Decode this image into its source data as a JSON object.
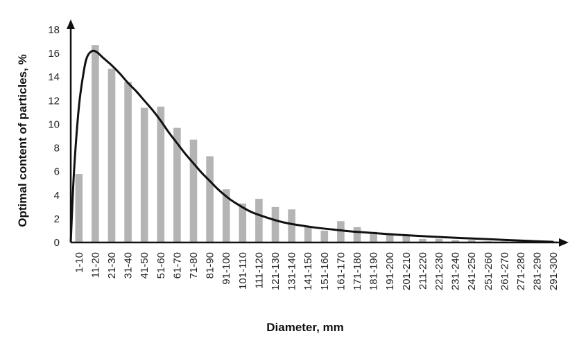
{
  "chart_data": {
    "type": "bar",
    "title": "",
    "xlabel": "Diameter, mm",
    "ylabel": "Optimal content of particles, %",
    "ylim": [
      0,
      18
    ],
    "yticks": [
      0,
      2,
      4,
      6,
      8,
      10,
      12,
      14,
      16,
      18
    ],
    "grid": false,
    "legend": "none",
    "categories": [
      "1-10",
      "11-20",
      "21-30",
      "31-40",
      "41-50",
      "51-60",
      "61-70",
      "71-80",
      "81-90",
      "91-100",
      "101-110",
      "111-120",
      "121-130",
      "131-140",
      "141-150",
      "151-160",
      "161-170",
      "171-180",
      "181-190",
      "191-200",
      "201-210",
      "211-220",
      "221-230",
      "231-240",
      "241-250",
      "251-260",
      "261-270",
      "271-280",
      "281-290",
      "291-300"
    ],
    "series": [
      {
        "kind": "bar",
        "color": "#b4b4b4",
        "values": [
          5.8,
          16.7,
          14.7,
          13.6,
          11.4,
          11.5,
          9.7,
          8.7,
          7.3,
          4.5,
          3.3,
          3.7,
          3.0,
          2.8,
          1.3,
          1.0,
          1.8,
          1.3,
          0.9,
          0.7,
          0.6,
          0.3,
          0.3,
          0.2,
          0.2,
          0.1,
          0.1,
          0.1,
          0.1,
          0.1
        ]
      },
      {
        "kind": "line",
        "color": "#111111",
        "smooth": true,
        "x": [
          0,
          0.2,
          0.5,
          0.8,
          1.0,
          1.3,
          1.6,
          2.0,
          2.5,
          3.0,
          3.5,
          4.0,
          4.5,
          5.0,
          5.5,
          6.0,
          6.5,
          7.0,
          7.5,
          8.0,
          8.5,
          9.0,
          9.5,
          10.0,
          11.0,
          12.0,
          13.0,
          14.0,
          15.0,
          16.0,
          17.0,
          18.0,
          20.0,
          22.0,
          24.0,
          26.0,
          28.0,
          29.5
        ],
        "y": [
          0,
          6.0,
          11.5,
          14.5,
          15.7,
          16.2,
          16.1,
          15.6,
          15.0,
          14.3,
          13.5,
          12.8,
          12.0,
          11.2,
          10.3,
          9.3,
          8.4,
          7.5,
          6.7,
          5.9,
          5.2,
          4.5,
          3.9,
          3.4,
          2.6,
          2.1,
          1.7,
          1.45,
          1.25,
          1.1,
          0.95,
          0.85,
          0.65,
          0.5,
          0.37,
          0.25,
          0.13,
          0.05
        ]
      }
    ]
  }
}
